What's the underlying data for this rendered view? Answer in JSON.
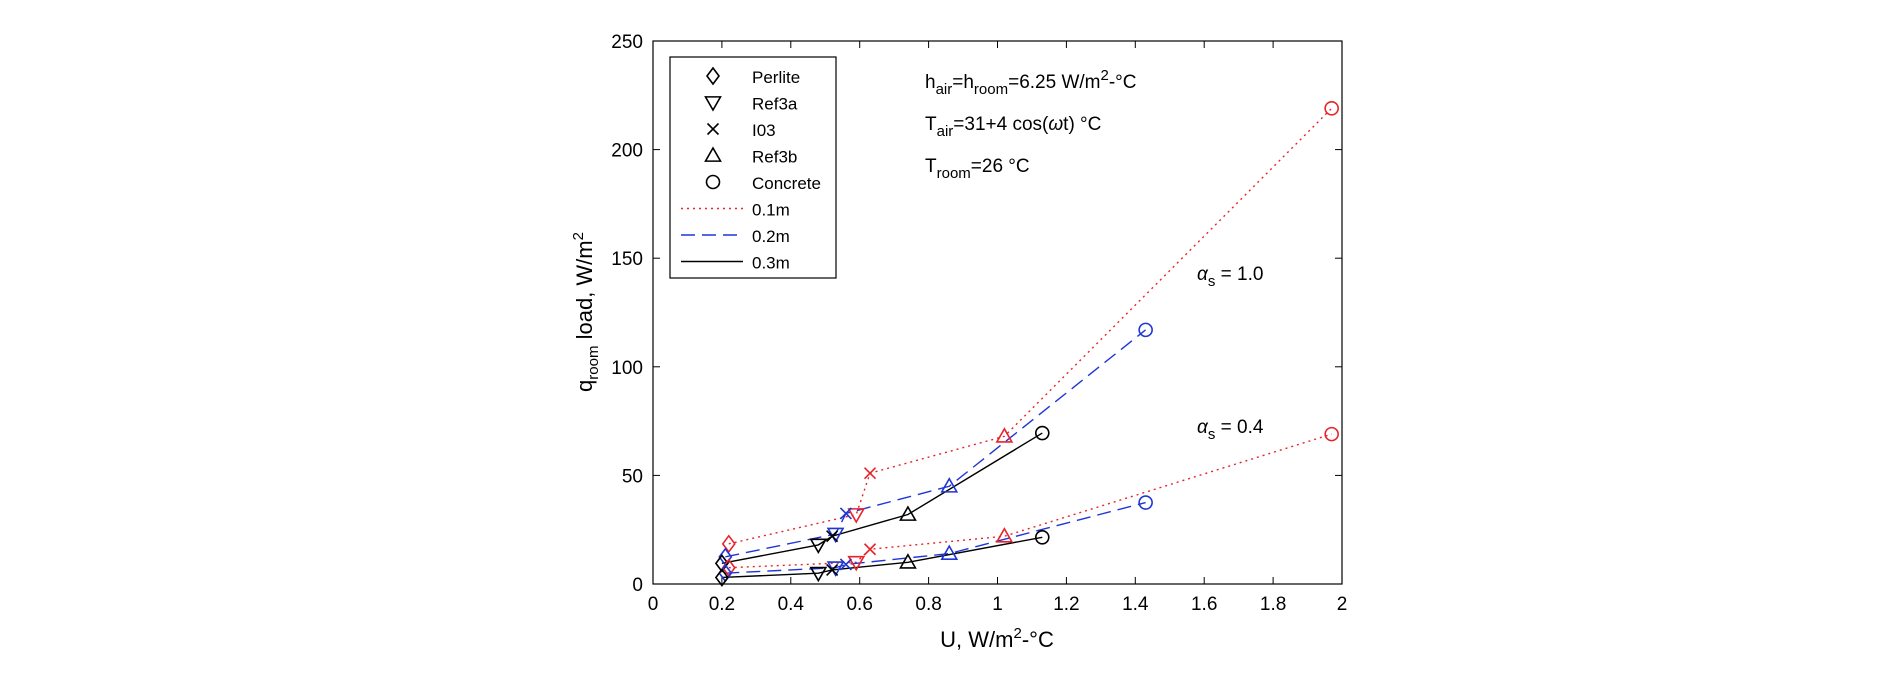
{
  "chart_data": {
    "type": "line",
    "xlabel": "U, W/m2-°C",
    "ylabel": "q_room load, W/m2",
    "xlim": [
      0,
      2
    ],
    "ylim": [
      0,
      250
    ],
    "xticks": [
      "0",
      "0.2",
      "0.4",
      "0.6",
      "0.8",
      "1",
      "1.2",
      "1.4",
      "1.6",
      "1.8",
      "2"
    ],
    "yticks": [
      "0",
      "50",
      "100",
      "150",
      "200",
      "250"
    ],
    "materials": [
      {
        "name": "Perlite",
        "marker": "diamond"
      },
      {
        "name": "Ref3a",
        "marker": "triangle-down"
      },
      {
        "name": "I03",
        "marker": "cross"
      },
      {
        "name": "Ref3b",
        "marker": "triangle-up"
      },
      {
        "name": "Concrete",
        "marker": "circle"
      }
    ],
    "thickness_styles": [
      {
        "name": "0.1m",
        "color": "#e8232a",
        "dash": "dotted"
      },
      {
        "name": "0.2m",
        "color": "#1f36d6",
        "dash": "dashed"
      },
      {
        "name": "0.3m",
        "color": "#000000",
        "dash": "solid"
      }
    ],
    "series": [
      {
        "name": "0.1m, αs = 1.0",
        "thickness": "0.1m",
        "alpha": "1.0",
        "x": [
          0.22,
          0.59,
          0.63,
          1.02,
          1.97
        ],
        "y": [
          18.5,
          32,
          51,
          68,
          219
        ]
      },
      {
        "name": "0.2m, αs = 1.0",
        "thickness": "0.2m",
        "alpha": "1.0",
        "x": [
          0.21,
          0.53,
          0.56,
          0.86,
          1.43
        ],
        "y": [
          12.5,
          23,
          32.5,
          45,
          117
        ]
      },
      {
        "name": "0.3m, αs = 1.0",
        "thickness": "0.3m",
        "alpha": "1.0",
        "x": [
          0.2,
          0.48,
          0.52,
          0.74,
          1.13
        ],
        "y": [
          9.5,
          18,
          22,
          32,
          69.5
        ]
      },
      {
        "name": "0.1m, αs = 0.4",
        "thickness": "0.1m",
        "alpha": "0.4",
        "x": [
          0.22,
          0.59,
          0.63,
          1.02,
          1.97
        ],
        "y": [
          7.5,
          10,
          16,
          22,
          69
        ]
      },
      {
        "name": "0.2m, αs = 0.4",
        "thickness": "0.2m",
        "alpha": "0.4",
        "x": [
          0.21,
          0.53,
          0.56,
          0.86,
          1.43
        ],
        "y": [
          5,
          7.5,
          9,
          14,
          37.5
        ]
      },
      {
        "name": "0.3m, αs = 0.4",
        "thickness": "0.3m",
        "alpha": "0.4",
        "x": [
          0.2,
          0.48,
          0.52,
          0.74,
          1.13
        ],
        "y": [
          3,
          5,
          6.5,
          10,
          21.5
        ]
      }
    ],
    "annotations": {
      "h_line": "h_air = h_room = 6.25 W/m2-°C",
      "tair_line": "T_air = 31+4 cos(ωt) °C",
      "troom_line": "T_room = 26 °C",
      "alpha_high": "αs = 1.0",
      "alpha_low": "αs = 0.4"
    },
    "text_parts": {
      "ylabel": {
        "q": "q",
        "room": "room",
        "rest": " load, W/m",
        "sup": "2"
      },
      "xlabel": {
        "main": "U, W/m",
        "sup": "2",
        "rest": "-°C"
      },
      "h_line": {
        "h": "h",
        "air": "air",
        "eq_h": "=h",
        "room": "room",
        "value": "=6.25 W/m",
        "sup": "2",
        "unit": "-°C"
      },
      "tair_line": {
        "t": "T",
        "air": "air",
        "pre": "=31+4 cos(",
        "omega": "ω",
        "post": "t) °C"
      },
      "troom_line": {
        "t": "T",
        "room": "room",
        "value": "=26 °C"
      },
      "alpha_high": {
        "alpha": "α",
        "s": "s",
        "value": " = 1.0"
      },
      "alpha_low": {
        "alpha": "α",
        "s": "s",
        "value": " = 0.4"
      }
    },
    "legend_position": "top-left"
  }
}
